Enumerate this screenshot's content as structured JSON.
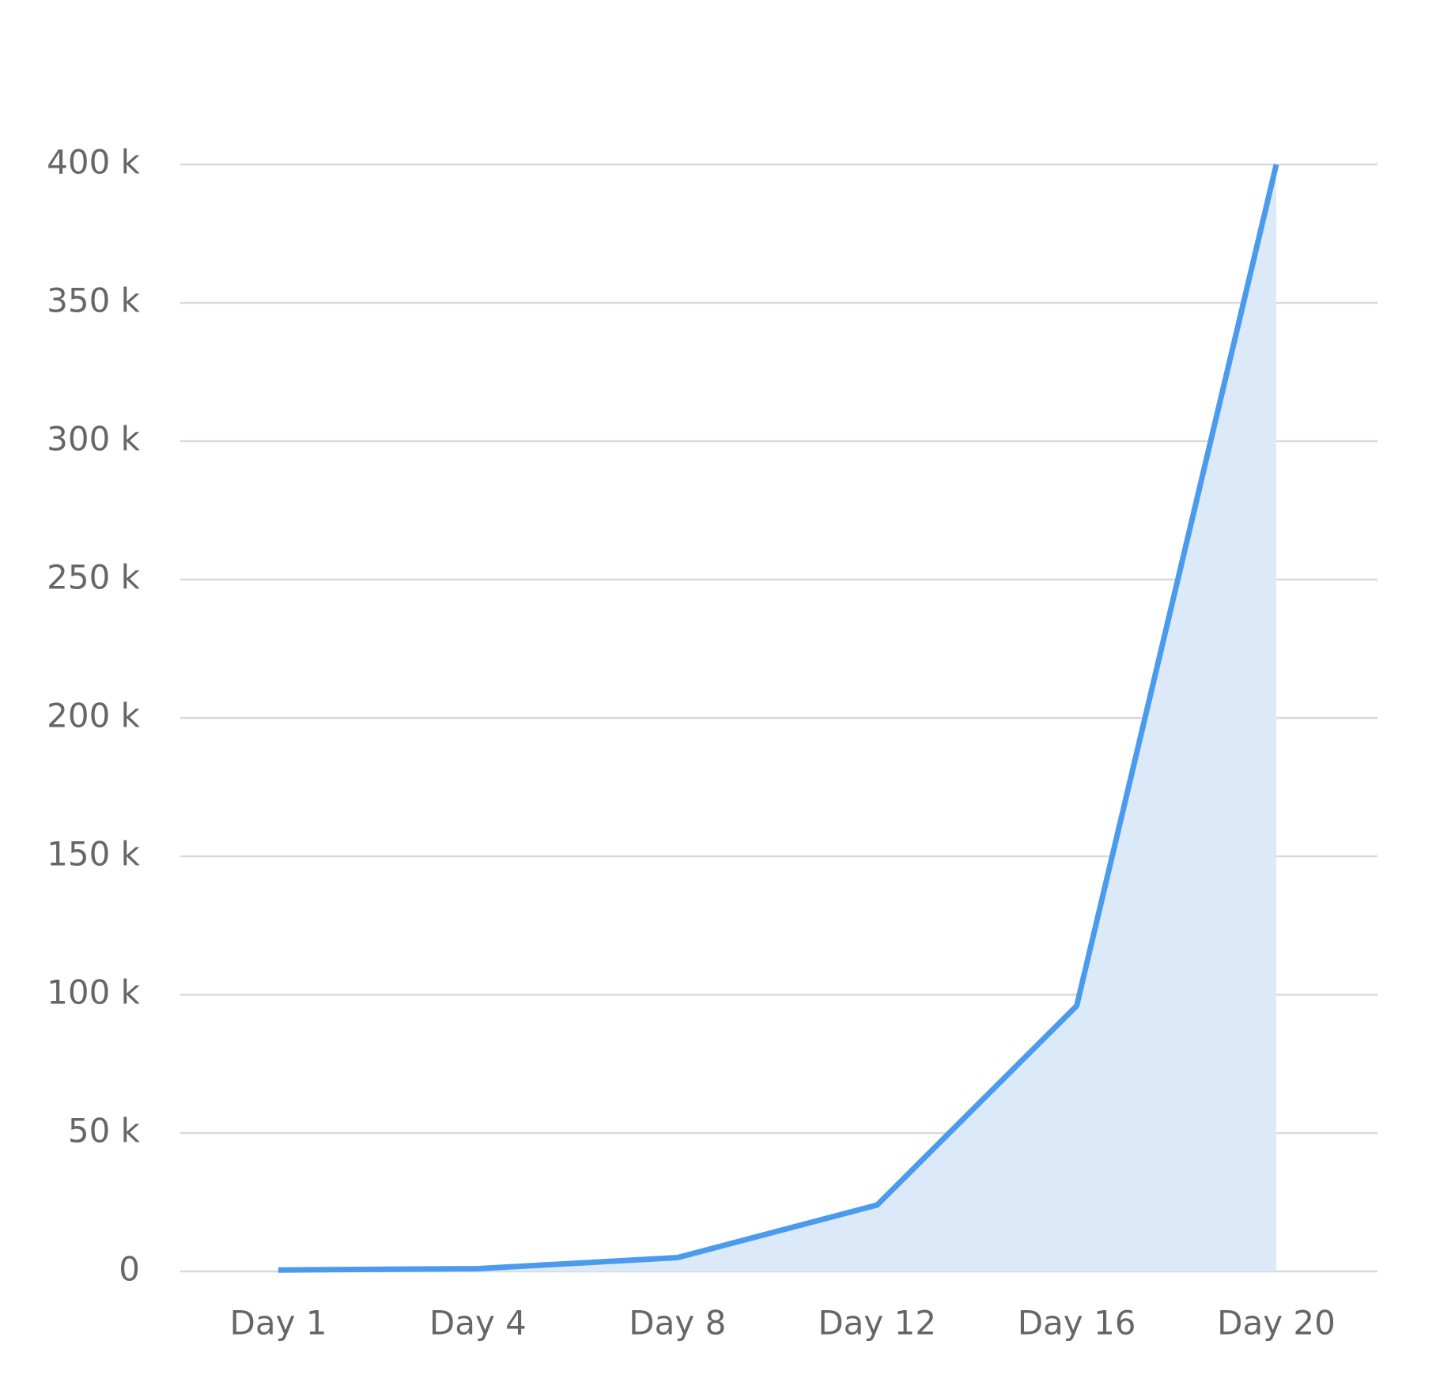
{
  "chart_data": {
    "type": "area",
    "categories": [
      "Day 1",
      "Day 4",
      "Day 8",
      "Day 12",
      "Day 16",
      "Day 20"
    ],
    "values": [
      500,
      1000,
      5000,
      24000,
      96000,
      400000
    ],
    "color": "#4a9aee",
    "fill_color": "#dbe9f9",
    "ylim": [
      0,
      400000
    ],
    "yticks": [
      0,
      {
        "value": 50000,
        "label": "50 k"
      },
      {
        "value": 100000,
        "label": "100 k"
      },
      {
        "value": 150000,
        "label": "150 k"
      },
      {
        "value": 200000,
        "label": "200 k"
      },
      {
        "value": 250000,
        "label": "250 k"
      },
      {
        "value": 300000,
        "label": "300 k"
      },
      {
        "value": 350000,
        "label": "350 k"
      },
      {
        "value": 400000,
        "label": "400 k"
      }
    ],
    "grid": true
  }
}
